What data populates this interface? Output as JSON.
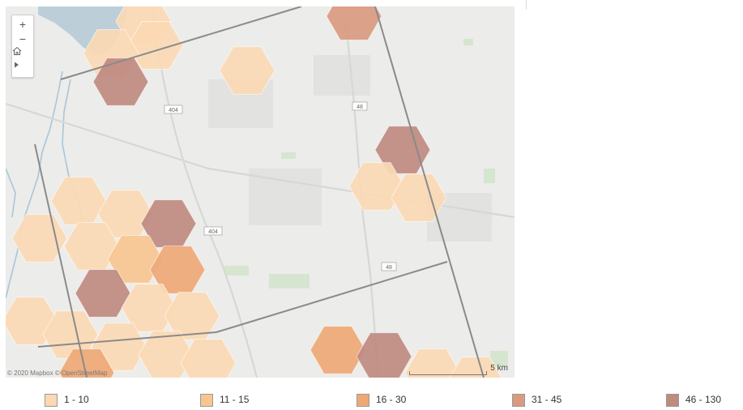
{
  "map": {
    "attribution": "© 2020 Mapbox © OpenStreetMap",
    "scale_label": "5 km",
    "road_shields": [
      "404",
      "404",
      "48",
      "48"
    ],
    "controls": {
      "zoom_in": "+",
      "zoom_out": "−",
      "home": "home-icon",
      "play": "play-icon"
    }
  },
  "legend": {
    "items": [
      {
        "label": "1 - 10",
        "color": "#fbd9b4"
      },
      {
        "label": "11 - 15",
        "color": "#f8c590"
      },
      {
        "label": "16 - 30",
        "color": "#eea876"
      },
      {
        "label": "31 - 45",
        "color": "#d99a80"
      },
      {
        "label": "46 - 130",
        "color": "#bf8a80"
      }
    ]
  },
  "colors": {
    "water": "#bccfd9",
    "land": "#ececea",
    "park": "#d6e5cf",
    "boundary": "#8a8a8a"
  }
}
